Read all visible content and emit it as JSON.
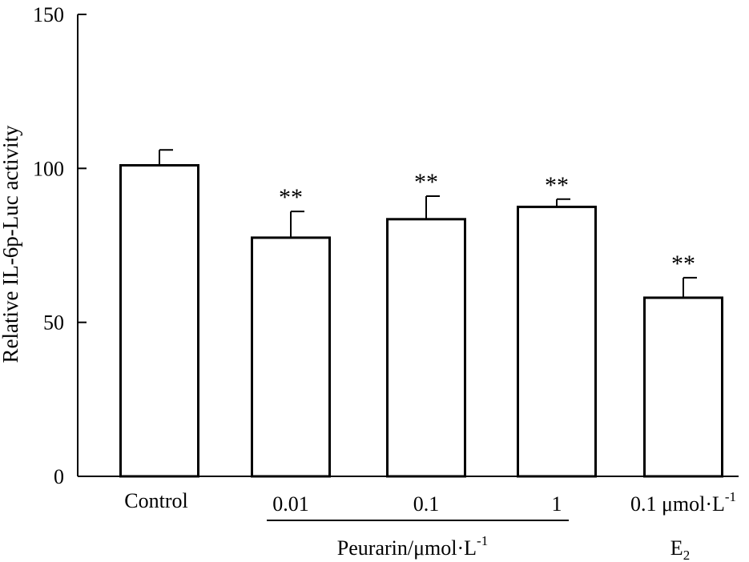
{
  "chart_data": {
    "type": "bar",
    "title": "",
    "xlabel": "",
    "ylabel": "Relative IL-6p-Luc activity",
    "ylim": [
      0,
      150
    ],
    "yticks": [
      0,
      50,
      100,
      150
    ],
    "grid": false,
    "categories": [
      "Control",
      "0.01",
      "0.1",
      "1",
      "0.1 μmol·L"
    ],
    "values": [
      101,
      77.5,
      83.5,
      87.5,
      58
    ],
    "errors": [
      5,
      8.5,
      7.5,
      2.5,
      6.5
    ],
    "significance": [
      "",
      "**",
      "**",
      "**",
      "**"
    ],
    "last_category_superscript": "-1",
    "e2_label": {
      "main": "E",
      "subscript": "2"
    },
    "group_label": {
      "text": "Peurarin/μmol·L",
      "superscript": "-1",
      "spans_categories": [
        1,
        3
      ]
    },
    "colors": {
      "bar_fill": "#ffffff",
      "stroke": "#000000"
    }
  }
}
